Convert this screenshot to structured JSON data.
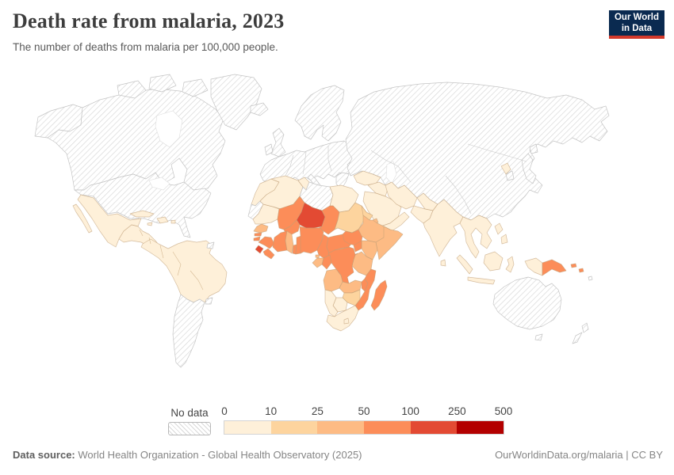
{
  "header": {
    "title": "Death rate from malaria, 2023",
    "subtitle": "The number of deaths from malaria per 100,000 people."
  },
  "logo": {
    "line1": "Our World",
    "line2": "in Data",
    "bg": "#0a2a50",
    "accent": "#d3392b"
  },
  "legend": {
    "no_data_label": "No data",
    "tick_labels": [
      "0",
      "10",
      "25",
      "50",
      "100",
      "250",
      "500"
    ],
    "colors": [
      "#fef0d9",
      "#fdd49e",
      "#fdbb84",
      "#fc8d59",
      "#e34a33",
      "#b30000"
    ]
  },
  "footer": {
    "source_label": "Data source:",
    "source_text": " World Health Organization - Global Health Observatory (2025)",
    "right_text": "OurWorldinData.org/malaria | CC BY"
  },
  "map": {
    "hatch_color": "#d6d6d6",
    "nodata_border": "#c4c4c4",
    "country_border": "#bf9d74",
    "palette": {
      "0-10": "#fef0d9",
      "10-25": "#fdd49e",
      "25-50": "#fdbb84",
      "50-100": "#fc8d59",
      "100-250": "#e34a33",
      "250-500": "#b30000"
    },
    "regions": {
      "alaska": "no-data",
      "canada": "no-data",
      "arctic-1": "no-data",
      "arctic-2": "no-data",
      "arctic-3": "no-data",
      "greenland": "no-data",
      "usa": "no-data",
      "southern-cone": "no-data",
      "uruguay": "no-data",
      "french-guiana": "no-data",
      "iceland": "no-data",
      "uk": "no-data",
      "ireland": "no-data",
      "scandinavia": "no-data",
      "europe-mainland": "no-data",
      "italy": "no-data",
      "balkans": "no-data",
      "russia-asia": "no-data",
      "south-korea": "no-data",
      "japan": "no-data",
      "hokkaido": "no-data",
      "australia": "no-data",
      "tasmania": "no-data",
      "nz-north": "no-data",
      "nz-south": "no-data",
      "fiji": "no-data",
      "libya": "no-data",
      "western-sahara": "no-data",
      "mexico": "0-10",
      "baja": "0-10",
      "central-america": "0-10",
      "cuba": "0-10",
      "hispaniola": "0-10",
      "jamaica": "0-10",
      "puerto-rico": "0-10",
      "south-america": "0-10",
      "morocco": "0-10",
      "algeria": "0-10",
      "tunisia": "0-10",
      "egypt": "0-10",
      "mauritania": "0-10",
      "turkey": "0-10",
      "syria-iraq": "0-10",
      "saudi": "0-10",
      "yemen-oman": "0-10",
      "iran": "0-10",
      "afghanistan": "0-10",
      "pakistan": "0-10",
      "india": "0-10",
      "sri-lanka": "0-10",
      "indochina": "0-10",
      "north-korea": "0-10",
      "sumatra": "0-10",
      "java": "0-10",
      "borneo": "0-10",
      "sulawesi": "0-10",
      "w-new-guinea": "0-10",
      "philippines-1": "0-10",
      "philippines-2": "0-10",
      "namibia": "0-10",
      "botswana": "0-10",
      "south-africa": "0-10",
      "lesotho": "0-10",
      "sudan": "10-25",
      "eritrea": "10-25",
      "zimbabwe": "10-25",
      "ethiopia": "25-50",
      "somalia": "25-50",
      "kenya": "25-50",
      "tanzania": "25-50",
      "ghana": "25-50",
      "senegal": "25-50",
      "gabon": "25-50",
      "eq-guinea": "25-50",
      "angola": "25-50",
      "zambia": "25-50",
      "djibouti": "25-50",
      "mali": "50-100",
      "burkina-faso": "50-100",
      "guinea": "50-100",
      "guinea-bissau": "50-100",
      "gambia": "50-100",
      "liberia": "50-100",
      "cote-divoire": "50-100",
      "togo": "50-100",
      "benin": "50-100",
      "nigeria": "50-100",
      "chad": "50-100",
      "cameroon": "50-100",
      "car": "50-100",
      "south-sudan": "50-100",
      "uganda": "50-100",
      "rwanda-burundi": "50-100",
      "drc": "50-100",
      "congo": "50-100",
      "malawi": "50-100",
      "mozambique": "50-100",
      "madagascar": "50-100",
      "png": "50-100",
      "solomon-1": "50-100",
      "solomon-2": "50-100",
      "niger": "100-250",
      "sierra-leone": "100-250"
    }
  },
  "chart_data": {
    "type": "choropleth_map",
    "title": "Death rate from malaria, 2023",
    "unit": "deaths from malaria per 100,000 people",
    "year": 2023,
    "legend_bins": [
      0,
      10,
      25,
      50,
      100,
      250,
      500
    ],
    "legend_colors": [
      "#fef0d9",
      "#fdd49e",
      "#fdbb84",
      "#fc8d59",
      "#e34a33",
      "#b30000"
    ],
    "no_data_regions": [
      "Canada",
      "United States",
      "Greenland",
      "Europe",
      "Russia",
      "Kazakhstan",
      "Central Asia",
      "China",
      "Mongolia",
      "Japan",
      "South Korea",
      "Australia",
      "New Zealand",
      "Chile",
      "Argentina",
      "Uruguay",
      "Libya",
      "Western Sahara",
      "French Guiana",
      "Iceland"
    ],
    "bins": {
      "0-10": [
        "Mexico",
        "Central America",
        "Caribbean",
        "Colombia",
        "Venezuela",
        "Peru",
        "Brazil",
        "Bolivia",
        "Paraguay",
        "Morocco",
        "Algeria",
        "Tunisia",
        "Egypt",
        "Mauritania",
        "Turkey",
        "Saudi Arabia",
        "Yemen",
        "Oman",
        "Iraq",
        "Syria",
        "Iran",
        "Afghanistan",
        "Pakistan",
        "India",
        "Bangladesh",
        "Sri Lanka",
        "Myanmar",
        "Thailand",
        "Laos",
        "Vietnam",
        "Cambodia",
        "Malaysia",
        "Indonesia",
        "Philippines",
        "North Korea",
        "Namibia",
        "Botswana",
        "South Africa",
        "Lesotho"
      ],
      "10-25": [
        "Sudan",
        "Eritrea",
        "Zimbabwe"
      ],
      "25-50": [
        "Ethiopia",
        "Somalia",
        "Kenya",
        "Tanzania",
        "Ghana",
        "Senegal",
        "Gabon",
        "Equatorial Guinea",
        "Angola",
        "Zambia",
        "Djibouti"
      ],
      "50-100": [
        "Mali",
        "Burkina Faso",
        "Guinea",
        "Guinea-Bissau",
        "Gambia",
        "Liberia",
        "Cote d'Ivoire",
        "Togo",
        "Benin",
        "Nigeria",
        "Chad",
        "Cameroon",
        "Central African Republic",
        "South Sudan",
        "Uganda",
        "Rwanda",
        "Burundi",
        "DR Congo",
        "Congo",
        "Malawi",
        "Mozambique",
        "Madagascar",
        "Papua New Guinea",
        "Solomon Islands"
      ],
      "100-250": [
        "Niger",
        "Sierra Leone"
      ],
      "250-500": []
    }
  }
}
